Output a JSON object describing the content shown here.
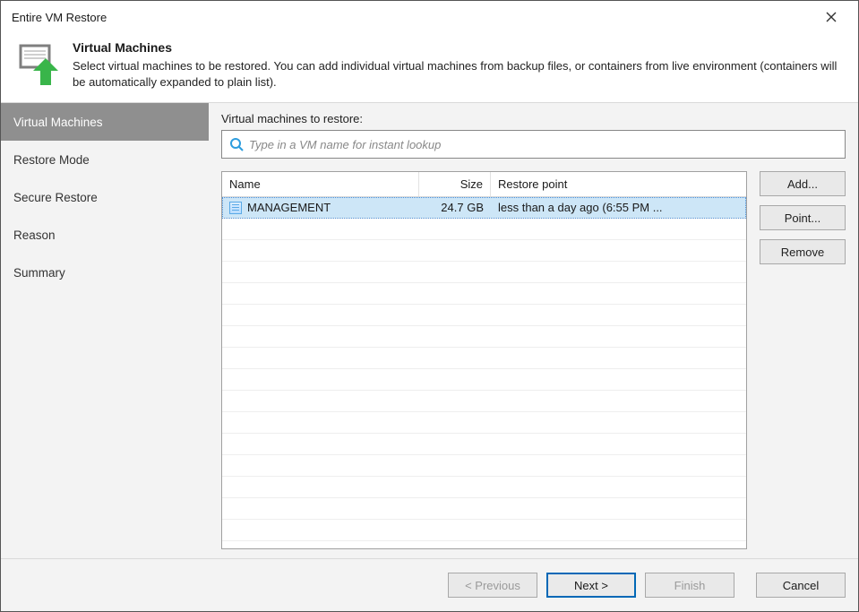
{
  "window": {
    "title": "Entire VM Restore"
  },
  "header": {
    "title": "Virtual Machines",
    "description": "Select virtual machines to be restored. You  can add individual virtual machines from backup files, or containers from live environment (containers will be automatically expanded to plain list).",
    "icon_colors": {
      "box": "#7f7f7f",
      "arrow": "#39b54a",
      "screen": "#ffffff"
    }
  },
  "sidebar": {
    "items": [
      {
        "label": "Virtual Machines",
        "active": true
      },
      {
        "label": "Restore Mode",
        "active": false
      },
      {
        "label": "Secure Restore",
        "active": false
      },
      {
        "label": "Reason",
        "active": false
      },
      {
        "label": "Summary",
        "active": false
      }
    ]
  },
  "main": {
    "list_label": "Virtual machines to restore:",
    "search": {
      "placeholder": "Type in a VM name for instant lookup"
    },
    "columns": {
      "name": "Name",
      "size": "Size",
      "restore_point": "Restore point"
    },
    "rows": [
      {
        "name": "MANAGEMENT",
        "size": "24.7 GB",
        "restore_point": "less than a day ago (6:55 PM ...",
        "selected": true
      }
    ],
    "empty_row_count": 15,
    "side_buttons": {
      "add": "Add...",
      "point": "Point...",
      "remove": "Remove"
    }
  },
  "footer": {
    "previous": "< Previous",
    "next": "Next >",
    "finish": "Finish",
    "cancel": "Cancel",
    "previous_enabled": false,
    "next_primary": true,
    "finish_enabled": false
  },
  "colors": {
    "window_border": "#555555",
    "body_bg": "#f3f3f3",
    "sidebar_active_bg": "#8f8f8f",
    "row_selected_bg": "#cde6f7",
    "primary_border": "#0068b6",
    "search_icon": "#2e9dde"
  }
}
